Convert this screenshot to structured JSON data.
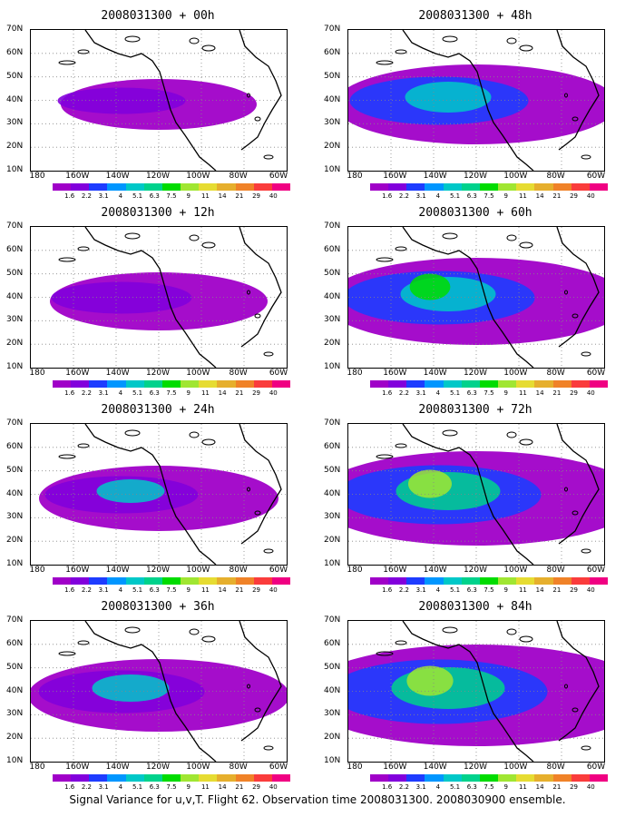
{
  "figure": {
    "caption": "Signal Variance for u,v,T. Flight 62. Observation time 2008031300. 2008030900 ensemble."
  },
  "axes": {
    "lat_labels": [
      "70N",
      "60N",
      "50N",
      "40N",
      "30N",
      "20N",
      "10N"
    ],
    "lon_labels": [
      "180",
      "160W",
      "140W",
      "120W",
      "100W",
      "80W",
      "60W"
    ]
  },
  "colorbar": {
    "labels": [
      "1.6",
      "2.2",
      "3.1",
      "4",
      "5.1",
      "6.3",
      "7.5",
      "9",
      "11",
      "14",
      "21",
      "29",
      "40"
    ],
    "colors": [
      "#a000c8",
      "#8200dc",
      "#1e3cff",
      "#0096ff",
      "#00c8c8",
      "#00d28c",
      "#00dc00",
      "#a0e632",
      "#e6dc32",
      "#e6af2d",
      "#f08228",
      "#fa3c3c",
      "#f00082"
    ]
  },
  "panels": [
    {
      "id": "00h",
      "title": "2008031300 + 00h",
      "intensity": 0.15
    },
    {
      "id": "48h",
      "title": "2008031300 + 48h",
      "intensity": 0.55
    },
    {
      "id": "12h",
      "title": "2008031300 + 12h",
      "intensity": 0.25
    },
    {
      "id": "60h",
      "title": "2008031300 + 60h",
      "intensity": 0.65
    },
    {
      "id": "24h",
      "title": "2008031300 + 24h",
      "intensity": 0.35
    },
    {
      "id": "72h",
      "title": "2008031300 + 72h",
      "intensity": 0.75
    },
    {
      "id": "36h",
      "title": "2008031300 + 36h",
      "intensity": 0.45
    },
    {
      "id": "84h",
      "title": "2008031300 + 84h",
      "intensity": 0.85
    }
  ]
}
